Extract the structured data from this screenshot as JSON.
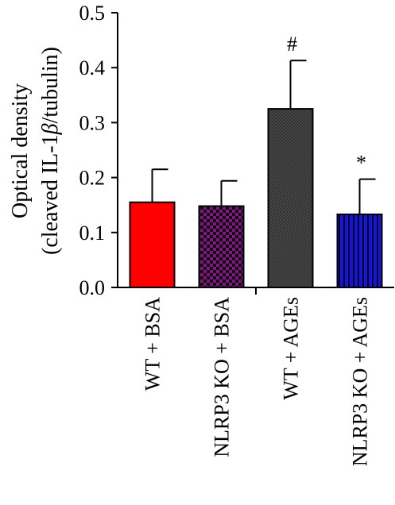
{
  "chart_data": {
    "type": "bar",
    "ylabel_line1": "Optical density",
    "ylabel_line2": {
      "prefix": "(cleaved IL-1",
      "symbol": "β",
      "suffix": "/tubulin)"
    },
    "xlabel": "",
    "ylim": [
      0,
      0.5
    ],
    "yticks": [
      0.0,
      0.1,
      0.2,
      0.3,
      0.4,
      0.5
    ],
    "ytick_labels": [
      "0.0",
      "0.1",
      "0.2",
      "0.3",
      "0.4",
      "0.5"
    ],
    "categories": [
      "WT + BSA",
      "NLRP3 KO + BSA",
      "WT + AGEs",
      "NLRP3 KO + AGEs"
    ],
    "values": [
      0.155,
      0.148,
      0.325,
      0.133
    ],
    "errors": [
      0.06,
      0.046,
      0.088,
      0.064
    ],
    "annotations": [
      "",
      "",
      "#",
      "*"
    ],
    "colors": [
      "#ff0000",
      "#7a1a7a",
      "#3a3a3a",
      "#1010b0"
    ],
    "patterns": [
      "solid",
      "checker",
      "dots",
      "vstripes"
    ],
    "grid": false,
    "legend": "none"
  }
}
